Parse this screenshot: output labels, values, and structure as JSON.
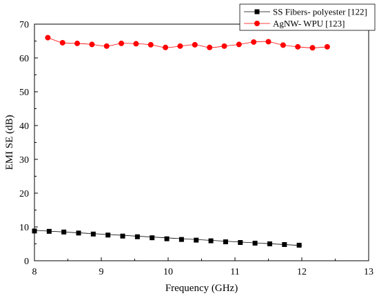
{
  "chart_data": {
    "type": "line",
    "title": "",
    "xlabel": "Frequency (GHz)",
    "ylabel": "EMI SE (dB)",
    "xlim": [
      8,
      13
    ],
    "ylim": [
      0,
      70
    ],
    "xticks": [
      "8",
      "9",
      "10",
      "11",
      "12",
      "13"
    ],
    "yticks": [
      "0",
      "10",
      "20",
      "30",
      "40",
      "50",
      "60",
      "70"
    ],
    "grid": false,
    "legend_position": "top-right",
    "series": [
      {
        "name": "SS Fibers- polyester [122]",
        "marker": "square",
        "color": "#000000",
        "x": [
          8.0,
          8.22,
          8.44,
          8.66,
          8.88,
          9.1,
          9.32,
          9.54,
          9.76,
          9.98,
          10.2,
          10.42,
          10.64,
          10.86,
          11.08,
          11.3,
          11.52,
          11.74,
          11.96
        ],
        "y": [
          8.8,
          8.7,
          8.5,
          8.2,
          7.9,
          7.6,
          7.3,
          7.1,
          6.8,
          6.5,
          6.3,
          6.1,
          5.9,
          5.6,
          5.4,
          5.2,
          5.0,
          4.8,
          4.6
        ],
        "fit_line": {
          "x": [
            8.0,
            12.0
          ],
          "y": [
            9.0,
            4.5
          ]
        }
      },
      {
        "name": "AgNW- WPU [123]",
        "marker": "circle",
        "color": "#ff0000",
        "x": [
          8.2,
          8.42,
          8.64,
          8.86,
          9.08,
          9.3,
          9.52,
          9.74,
          9.96,
          10.18,
          10.4,
          10.62,
          10.84,
          11.06,
          11.28,
          11.5,
          11.72,
          11.94,
          12.16,
          12.38
        ],
        "y": [
          66.0,
          64.5,
          64.3,
          64.0,
          63.5,
          64.3,
          64.2,
          63.9,
          63.1,
          63.5,
          63.9,
          63.1,
          63.5,
          64.0,
          64.7,
          64.8,
          63.8,
          63.3,
          63.0,
          63.3
        ]
      }
    ]
  }
}
